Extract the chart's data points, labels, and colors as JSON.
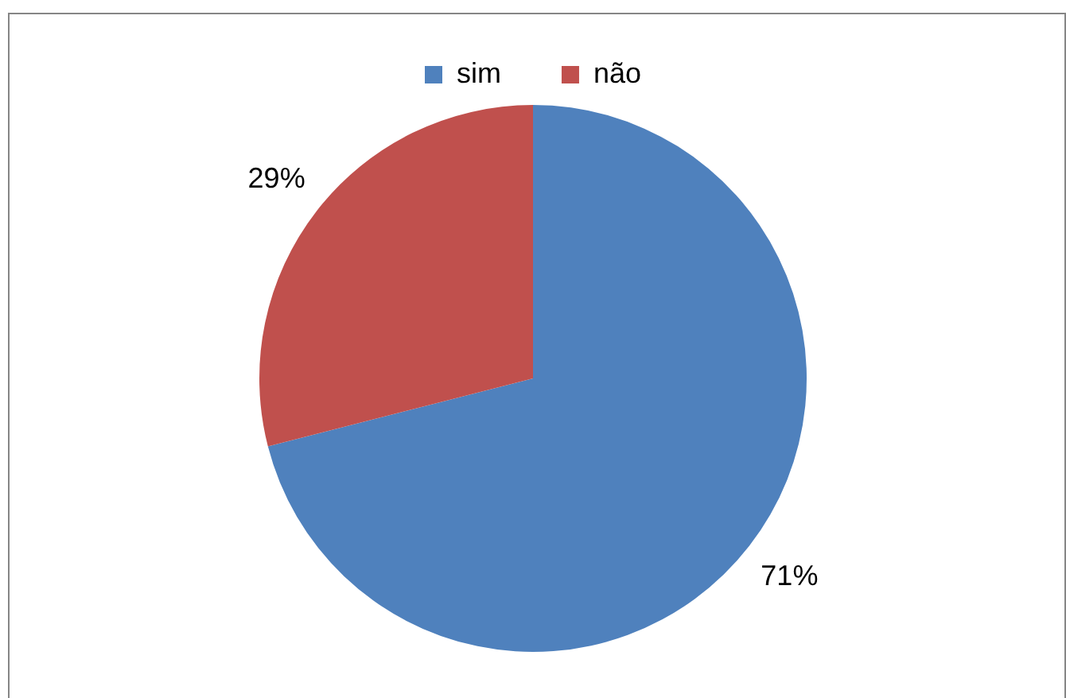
{
  "chart_data": {
    "type": "pie",
    "categories": [
      "sim",
      "não"
    ],
    "values": [
      71,
      29
    ],
    "colors": [
      "#4f81bd",
      "#c0504d"
    ],
    "value_labels": [
      "71%",
      "29%"
    ],
    "legend": "top"
  }
}
